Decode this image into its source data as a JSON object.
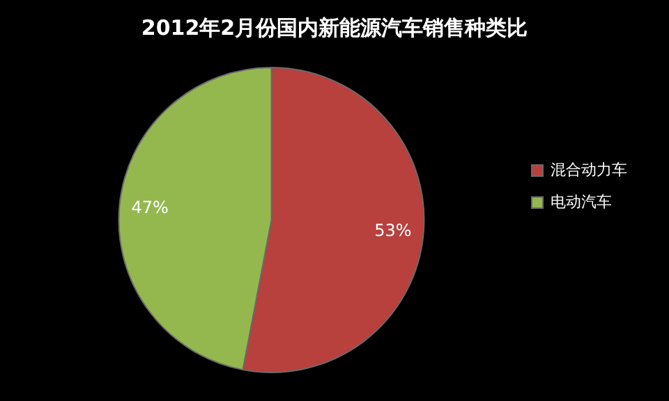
{
  "chart_data": {
    "type": "pie",
    "title": "2012年2月份国内新能源汽车销售种类比",
    "categories": [
      "混合动力车",
      "电动汽车"
    ],
    "values": [
      53,
      47
    ],
    "value_labels": [
      "53%",
      "47%"
    ],
    "colors": [
      "#b8403d",
      "#94b84e"
    ],
    "legend": "right"
  }
}
